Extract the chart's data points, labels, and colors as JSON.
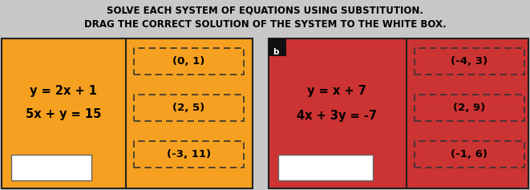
{
  "title_line1": "SOLVE EACH SYSTEM OF EQUATIONS USING SUBSTITUTION.",
  "title_line2": "DRAG THE CORRECT SOLUTION OF THE SYSTEM TO THE WHITE BOX.",
  "bg_color": "#c8c8c8",
  "panel_a_bg": "#F5A020",
  "panel_b_bg": "#CC3333",
  "panel_a_eq1": "y = 2x + 1",
  "panel_a_eq2": "5x + y = 15",
  "panel_b_eq1": "y = x + 7",
  "panel_b_eq2": "4x + 3y = -7",
  "options_a": [
    "(0, 1)",
    "(2, 5)",
    "(-3, 11)"
  ],
  "options_b": [
    "(-4, 3)",
    "(2, 9)",
    "(-1, 6)"
  ],
  "label_b": "b",
  "title_fontsize": 8.5,
  "eq_fontsize": 10.5,
  "opt_fontsize": 9.5
}
